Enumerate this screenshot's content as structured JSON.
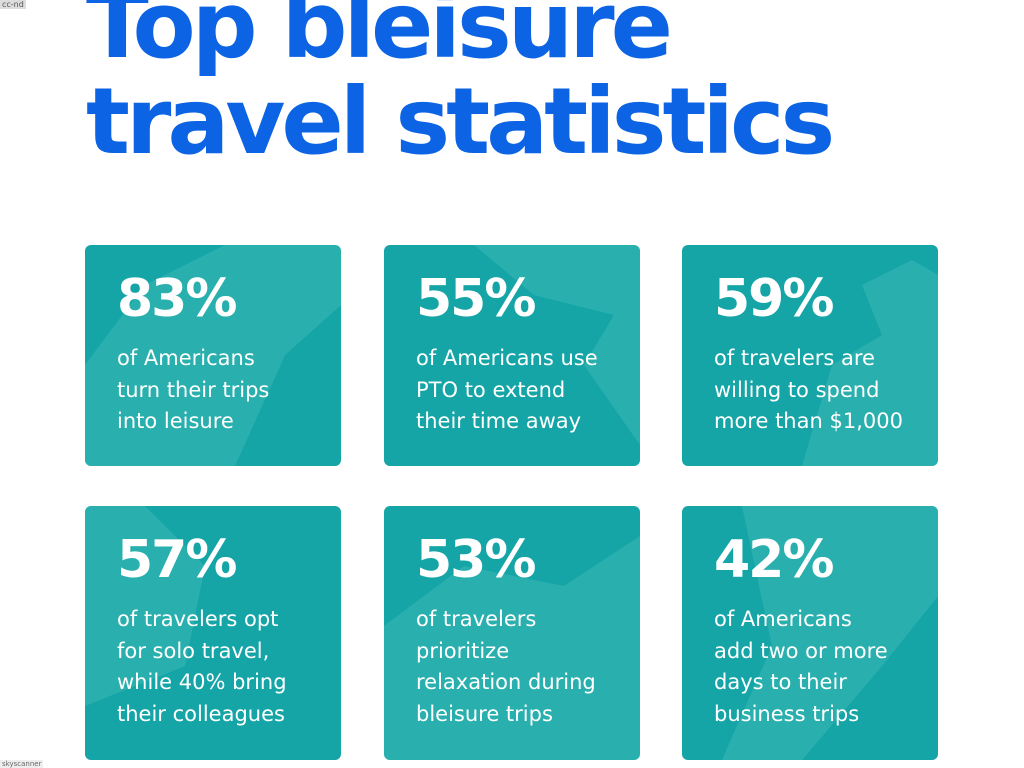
{
  "header": {
    "title": [
      "Top bleisure",
      "travel statistics"
    ],
    "badge": "cc-nd"
  },
  "cards": [
    {
      "stat": "83%",
      "description": [
        "of Americans",
        "turn their trips",
        "into leisure"
      ]
    },
    {
      "stat": "55%",
      "description": [
        "of Americans use",
        "PTO to extend",
        "their time away"
      ]
    },
    {
      "stat": "59%",
      "description": [
        "of travelers are",
        "willing to spend",
        "more than $1,000"
      ]
    },
    {
      "stat": "57%",
      "description": [
        "of travelers opt",
        "for solo travel,",
        "while 40% bring",
        "their colleagues"
      ]
    },
    {
      "stat": "53%",
      "description": [
        "of  travelers",
        "prioritize",
        "relaxation during",
        "bleisure trips"
      ]
    },
    {
      "stat": "42%",
      "description": [
        "of Americans",
        "add two or more",
        "days to their",
        "business trips"
      ]
    }
  ],
  "footer": {
    "credit": "skyscanner"
  }
}
